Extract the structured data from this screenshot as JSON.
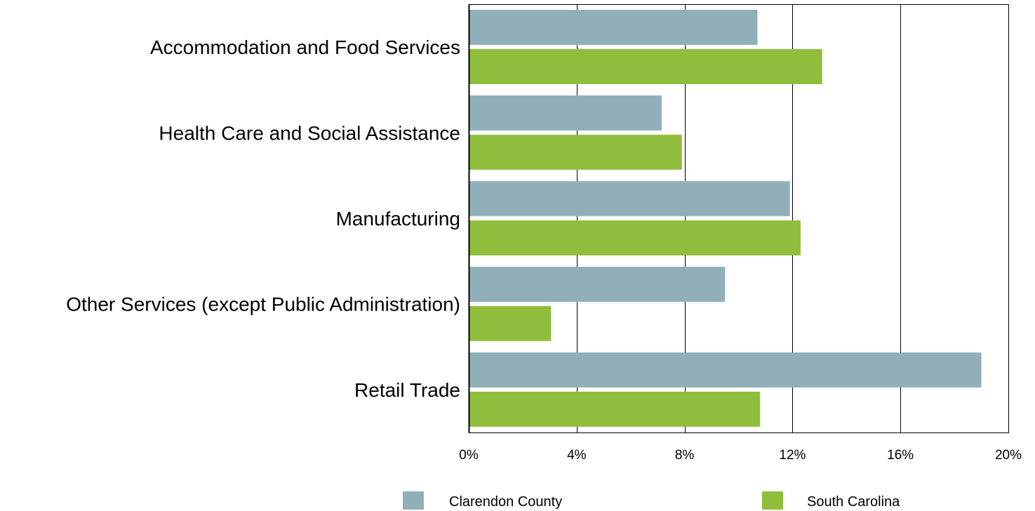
{
  "chart_data": {
    "type": "bar",
    "orientation": "horizontal",
    "categories": [
      "Accommodation and Food Services",
      "Health Care and Social Assistance",
      "Manufacturing",
      "Other Services (except Public Administration)",
      "Retail Trade"
    ],
    "series": [
      {
        "name": "Clarendon County",
        "color": "#90afb9",
        "values": [
          10.7,
          7.15,
          11.9,
          9.5,
          19.0
        ]
      },
      {
        "name": "South Carolina",
        "color": "#8fbe3c",
        "values": [
          13.1,
          7.9,
          12.3,
          3.05,
          10.8
        ]
      }
    ],
    "xlim": [
      0,
      20
    ],
    "x_ticks": [
      0,
      4,
      8,
      12,
      16,
      20
    ],
    "x_tick_labels": [
      "0%",
      "4%",
      "8%",
      "12%",
      "16%",
      "20%"
    ],
    "title": "",
    "xlabel": "",
    "ylabel": "",
    "grid": "vertical",
    "legend_position": "bottom"
  }
}
